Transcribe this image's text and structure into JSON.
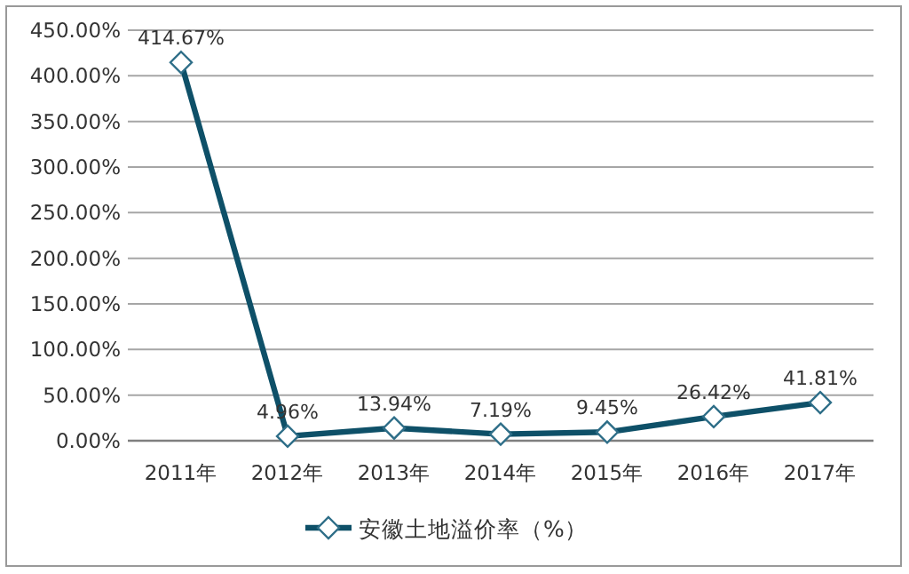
{
  "chart_data": {
    "type": "line",
    "categories": [
      "2011年",
      "2012年",
      "2013年",
      "2014年",
      "2015年",
      "2016年",
      "2017年"
    ],
    "series": [
      {
        "name": "安徽土地溢价率（%）",
        "color": "#0e5068",
        "values": [
          414.67,
          4.96,
          13.94,
          7.19,
          9.45,
          26.42,
          41.81
        ],
        "value_labels": [
          "414.67%",
          "4.96%",
          "13.94%",
          "7.19%",
          "9.45%",
          "26.42%",
          "41.81%"
        ]
      }
    ],
    "ylim": [
      0,
      450
    ],
    "yticks": [
      {
        "value": 0,
        "label": "0.00%"
      },
      {
        "value": 50,
        "label": "50.00%"
      },
      {
        "value": 100,
        "label": "100.00%"
      },
      {
        "value": 150,
        "label": "150.00%"
      },
      {
        "value": 200,
        "label": "200.00%"
      },
      {
        "value": 250,
        "label": "250.00%"
      },
      {
        "value": 300,
        "label": "300.00%"
      },
      {
        "value": 350,
        "label": "350.00%"
      },
      {
        "value": 400,
        "label": "400.00%"
      },
      {
        "value": 450,
        "label": "450.00%"
      }
    ],
    "grid": "y",
    "legend": "bottom",
    "marker": "diamond",
    "line_style": "solid"
  }
}
